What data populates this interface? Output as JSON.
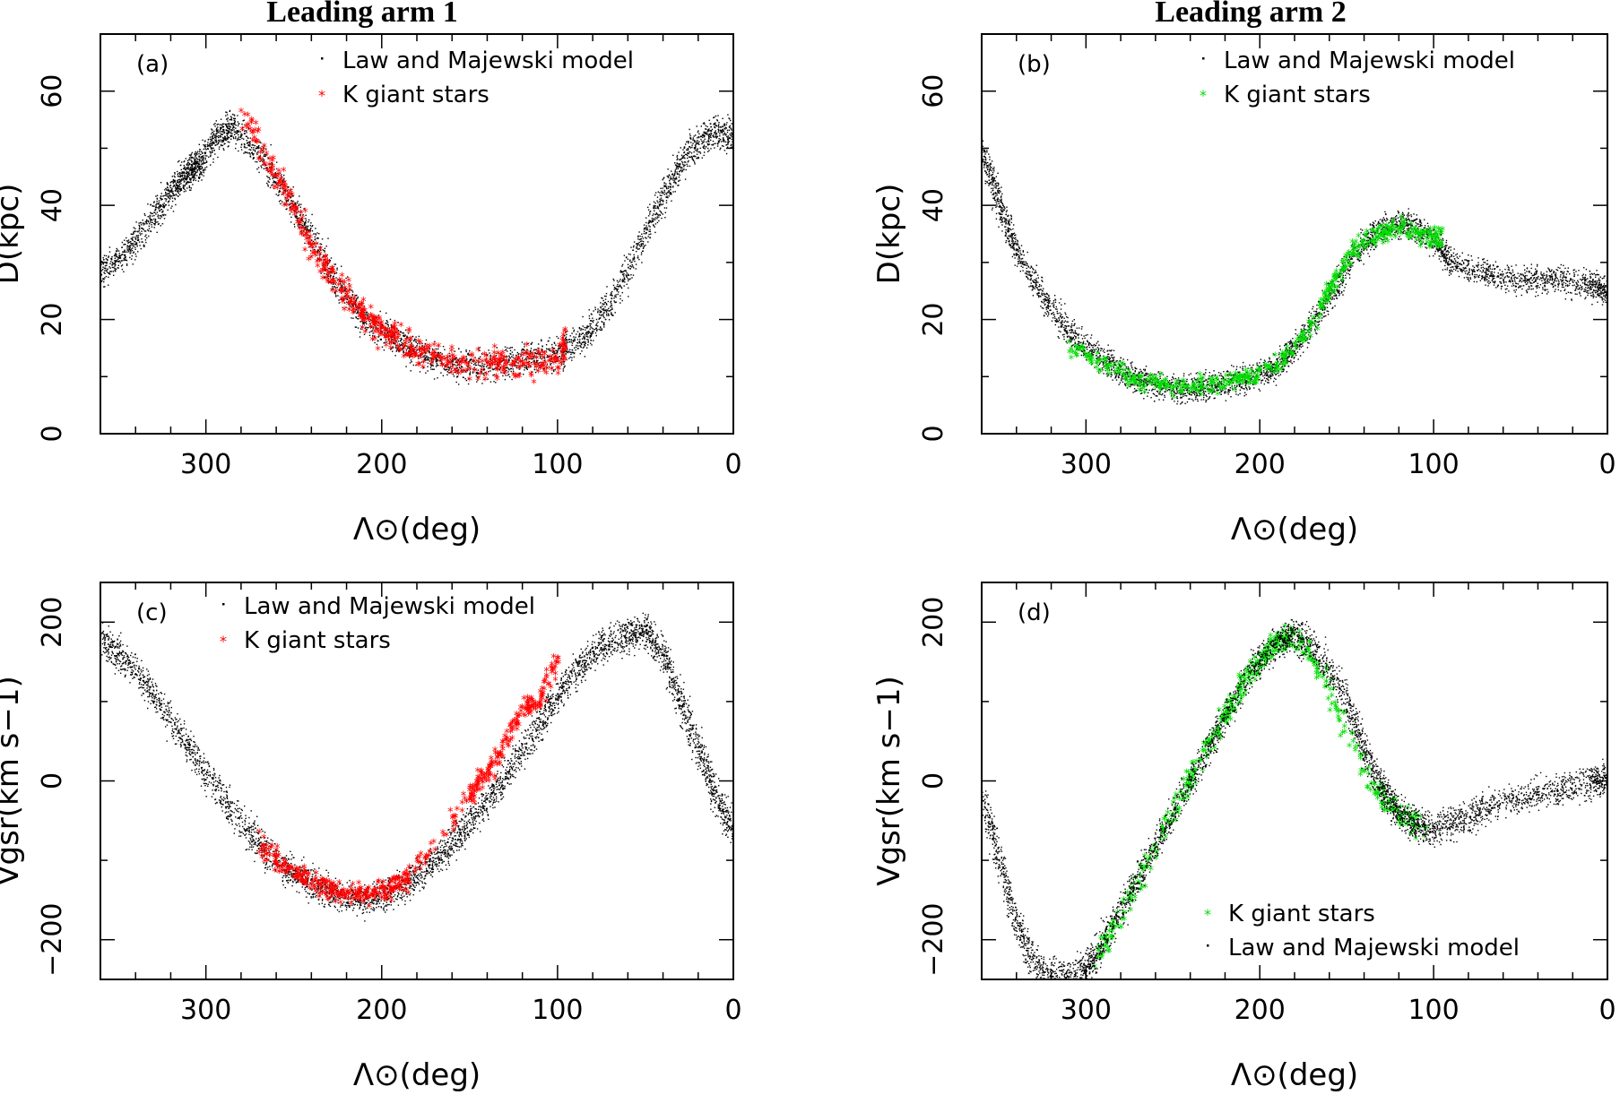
{
  "figure": {
    "column_titles": [
      "Leading arm 1",
      "Leading arm 2"
    ],
    "colors": {
      "model": "#000000",
      "arm1_stars": "#ff0000",
      "arm2_stars": "#00dd00",
      "axes": "#000000"
    }
  },
  "chart_data": [
    {
      "type": "scatter",
      "panel": "(a)",
      "column": "Leading arm 1",
      "xlabel": "Λ⊙(deg)",
      "ylabel": "D(kpc)",
      "xlim": [
        360,
        0
      ],
      "ylim": [
        0,
        70
      ],
      "xticks": [
        300,
        200,
        100,
        0
      ],
      "yticks": [
        0,
        20,
        40,
        60
      ],
      "legend_position": "top",
      "series": [
        {
          "name": "Law and Majewski model",
          "kind": "model",
          "color": "#000000",
          "marker": "·",
          "path": [
            [
              360,
              28
            ],
            [
              345,
              32
            ],
            [
              330,
              38
            ],
            [
              318,
              43
            ],
            [
              310,
              46
            ],
            [
              305,
              47
            ],
            [
              295,
              52
            ],
            [
              285,
              54
            ],
            [
              270,
              49
            ],
            [
              255,
              42
            ],
            [
              240,
              34
            ],
            [
              225,
              26
            ],
            [
              210,
              20
            ],
            [
              195,
              17
            ],
            [
              180,
              14
            ],
            [
              160,
              12
            ],
            [
              140,
              12
            ],
            [
              120,
              13
            ],
            [
              100,
              14
            ],
            [
              85,
              17
            ],
            [
              70,
              23
            ],
            [
              55,
              32
            ],
            [
              40,
              42
            ],
            [
              25,
              50
            ],
            [
              12,
              53
            ],
            [
              0,
              52
            ]
          ],
          "spread": 4
        },
        {
          "name": "K giant stars",
          "kind": "stars",
          "color": "#ff0000",
          "marker": "*",
          "path": [
            [
              278,
              56
            ],
            [
              265,
              47
            ],
            [
              255,
              42
            ],
            [
              245,
              36
            ],
            [
              235,
              30
            ],
            [
              225,
              26
            ],
            [
              215,
              22
            ],
            [
              205,
              19
            ],
            [
              195,
              17
            ],
            [
              185,
              15
            ],
            [
              175,
              14
            ],
            [
              160,
              12
            ],
            [
              145,
              12
            ],
            [
              130,
              12
            ],
            [
              115,
              12
            ],
            [
              100,
              13
            ],
            [
              95,
              16
            ]
          ],
          "spread": 4
        }
      ]
    },
    {
      "type": "scatter",
      "panel": "(b)",
      "column": "Leading arm 2",
      "xlabel": "Λ⊙(deg)",
      "ylabel": "D(kpc)",
      "xlim": [
        360,
        0
      ],
      "ylim": [
        0,
        70
      ],
      "xticks": [
        300,
        200,
        100,
        0
      ],
      "yticks": [
        0,
        20,
        40,
        60
      ],
      "legend_position": "top",
      "series": [
        {
          "name": "Law and Majewski model",
          "kind": "model",
          "color": "#000000",
          "marker": "·",
          "path": [
            [
              360,
              50
            ],
            [
              350,
              40
            ],
            [
              340,
              32
            ],
            [
              325,
              24
            ],
            [
              310,
              18
            ],
            [
              295,
              14
            ],
            [
              280,
              11
            ],
            [
              265,
              9
            ],
            [
              250,
              8
            ],
            [
              235,
              8
            ],
            [
              220,
              9
            ],
            [
              205,
              10
            ],
            [
              190,
              12
            ],
            [
              175,
              17
            ],
            [
              160,
              24
            ],
            [
              145,
              32
            ],
            [
              130,
              36
            ],
            [
              115,
              37
            ],
            [
              100,
              34
            ],
            [
              90,
              30
            ],
            [
              70,
              28
            ],
            [
              50,
              27
            ],
            [
              30,
              27
            ],
            [
              10,
              26
            ],
            [
              0,
              25
            ]
          ],
          "spread": 3.5
        },
        {
          "name": "K giant stars",
          "kind": "stars",
          "color": "#00dd00",
          "marker": "*",
          "path": [
            [
              310,
              15
            ],
            [
              290,
              12
            ],
            [
              270,
              9
            ],
            [
              250,
              8
            ],
            [
              230,
              8
            ],
            [
              215,
              9
            ],
            [
              200,
              10
            ],
            [
              185,
              13
            ],
            [
              170,
              19
            ],
            [
              158,
              26
            ],
            [
              145,
              32
            ],
            [
              130,
              35
            ],
            [
              118,
              36
            ],
            [
              105,
              34
            ],
            [
              95,
              34
            ]
          ],
          "spread": 2.5
        }
      ]
    },
    {
      "type": "scatter",
      "panel": "(c)",
      "column": "Leading arm 1",
      "xlabel": "Λ⊙(deg)",
      "ylabel": "Vgsr(km s−1)",
      "xlim": [
        360,
        0
      ],
      "ylim": [
        -250,
        250
      ],
      "xticks": [
        300,
        200,
        100,
        0
      ],
      "yticks": [
        -200,
        0,
        200
      ],
      "legend_position": "top",
      "series": [
        {
          "name": "Law and Majewski model",
          "kind": "model",
          "color": "#000000",
          "marker": "·",
          "path": [
            [
              360,
              180
            ],
            [
              345,
              150
            ],
            [
              330,
              110
            ],
            [
              315,
              60
            ],
            [
              300,
              10
            ],
            [
              285,
              -40
            ],
            [
              270,
              -80
            ],
            [
              255,
              -110
            ],
            [
              240,
              -130
            ],
            [
              225,
              -145
            ],
            [
              210,
              -150
            ],
            [
              195,
              -140
            ],
            [
              180,
              -120
            ],
            [
              165,
              -90
            ],
            [
              150,
              -50
            ],
            [
              135,
              -10
            ],
            [
              120,
              40
            ],
            [
              105,
              90
            ],
            [
              90,
              140
            ],
            [
              75,
              170
            ],
            [
              60,
              185
            ],
            [
              50,
              190
            ],
            [
              40,
              160
            ],
            [
              30,
              100
            ],
            [
              20,
              40
            ],
            [
              10,
              -20
            ],
            [
              0,
              -60
            ]
          ],
          "spread": 30
        },
        {
          "name": "K giant stars",
          "kind": "stars",
          "color": "#ff0000",
          "marker": "*",
          "path": [
            [
              270,
              -80
            ],
            [
              255,
              -110
            ],
            [
              240,
              -130
            ],
            [
              225,
              -140
            ],
            [
              210,
              -145
            ],
            [
              195,
              -135
            ],
            [
              185,
              -125
            ],
            [
              150,
              -20
            ],
            [
              140,
              10
            ],
            [
              130,
              40
            ],
            [
              120,
              90
            ],
            [
              110,
              100
            ],
            [
              100,
              150
            ]
          ],
          "spread": 20
        }
      ]
    },
    {
      "type": "scatter",
      "panel": "(d)",
      "column": "Leading arm 2",
      "xlabel": "Λ⊙(deg)",
      "ylabel": "Vgsr(km s−1)",
      "xlim": [
        360,
        0
      ],
      "ylim": [
        -250,
        250
      ],
      "xticks": [
        300,
        200,
        100,
        0
      ],
      "yticks": [
        -200,
        0,
        200
      ],
      "legend_position": "bottom-right",
      "series": [
        {
          "name": "K giant stars",
          "kind": "stars",
          "color": "#00dd00",
          "marker": "*",
          "path": [
            [
              295,
              -230
            ],
            [
              280,
              -170
            ],
            [
              265,
              -110
            ],
            [
              250,
              -40
            ],
            [
              240,
              0
            ],
            [
              230,
              40
            ],
            [
              220,
              80
            ],
            [
              210,
              120
            ],
            [
              200,
              150
            ],
            [
              190,
              170
            ],
            [
              180,
              180
            ],
            [
              165,
              140
            ],
            [
              150,
              60
            ],
            [
              135,
              -10
            ],
            [
              120,
              -40
            ],
            [
              105,
              -60
            ]
          ],
          "spread": 25
        },
        {
          "name": "Law and Majewski model",
          "kind": "model",
          "color": "#000000",
          "marker": "·",
          "path": [
            [
              360,
              -20
            ],
            [
              350,
              -100
            ],
            [
              340,
              -180
            ],
            [
              330,
              -230
            ],
            [
              315,
              -250
            ],
            [
              305,
              -245
            ],
            [
              295,
              -220
            ],
            [
              280,
              -160
            ],
            [
              265,
              -100
            ],
            [
              250,
              -40
            ],
            [
              235,
              20
            ],
            [
              220,
              80
            ],
            [
              205,
              140
            ],
            [
              190,
              175
            ],
            [
              180,
              185
            ],
            [
              165,
              160
            ],
            [
              150,
              100
            ],
            [
              140,
              40
            ],
            [
              130,
              -10
            ],
            [
              120,
              -40
            ],
            [
              110,
              -55
            ],
            [
              100,
              -60
            ],
            [
              85,
              -50
            ],
            [
              70,
              -35
            ],
            [
              50,
              -20
            ],
            [
              30,
              -10
            ],
            [
              10,
              0
            ],
            [
              0,
              5
            ]
          ],
          "spread": 30
        }
      ]
    }
  ]
}
